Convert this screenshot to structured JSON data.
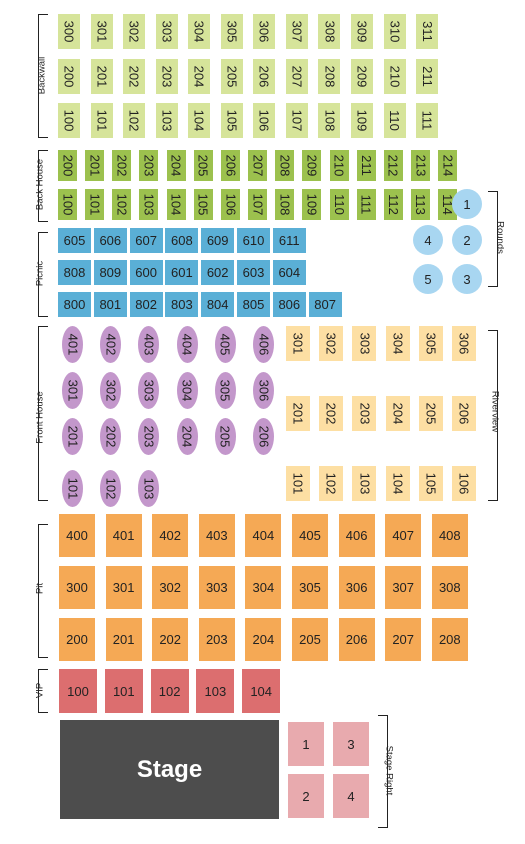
{
  "colors": {
    "backwall": "#d6e49a",
    "back_house": "#9cc14e",
    "picnic": "#5aafd6",
    "rounds": "#a8d6f1",
    "front_house": "#c397cb",
    "riverview": "#fddfa3",
    "pit": "#f5a955",
    "vip": "#dc6e6f",
    "stage_right": "#e8aaae",
    "stage": "#4d4d4d"
  },
  "labels": {
    "backwall": "Backwall",
    "back_house": "Back House",
    "picnic": "Picnic",
    "rounds": "Rounds",
    "front_house": "Front House",
    "riverview": "Riverview",
    "pit": "Pit",
    "vip": "VIP",
    "stage_right": "Stage Right",
    "stage": "Stage"
  },
  "backwall_rows": [
    [
      "300",
      "301",
      "302",
      "303",
      "304",
      "305",
      "306",
      "307",
      "308",
      "309",
      "310",
      "311"
    ],
    [
      "200",
      "201",
      "202",
      "203",
      "204",
      "205",
      "206",
      "207",
      "208",
      "209",
      "210",
      "211"
    ],
    [
      "100",
      "101",
      "102",
      "103",
      "104",
      "105",
      "106",
      "107",
      "108",
      "109",
      "110",
      "111"
    ]
  ],
  "back_house_rows": [
    [
      "200",
      "201",
      "202",
      "203",
      "204",
      "205",
      "206",
      "207",
      "208",
      "209",
      "210",
      "211",
      "212",
      "213",
      "214"
    ],
    [
      "100",
      "101",
      "102",
      "103",
      "104",
      "105",
      "106",
      "107",
      "108",
      "109",
      "110",
      "111",
      "112",
      "113",
      "114"
    ]
  ],
  "picnic_rows": [
    [
      "605",
      "606",
      "607",
      "608",
      "609",
      "610",
      "611"
    ],
    [
      "808",
      "809",
      "600",
      "601",
      "602",
      "603",
      "604"
    ],
    [
      "800",
      "801",
      "802",
      "803",
      "804",
      "805",
      "806",
      "807"
    ]
  ],
  "rounds": [
    "1",
    "2",
    "3",
    "4",
    "5"
  ],
  "front_house_rows": [
    [
      "401",
      "402",
      "403",
      "404",
      "405",
      "406"
    ],
    [
      "301",
      "302",
      "303",
      "304",
      "305",
      "306"
    ],
    [
      "201",
      "202",
      "203",
      "204",
      "205",
      "206"
    ],
    [
      "101",
      "102",
      "103"
    ]
  ],
  "riverview_rows": [
    [
      "301",
      "302",
      "303",
      "304",
      "305",
      "306"
    ],
    [
      "201",
      "202",
      "203",
      "204",
      "205",
      "206"
    ],
    [
      "101",
      "102",
      "103",
      "104",
      "105",
      "106"
    ]
  ],
  "pit_rows": [
    [
      "400",
      "401",
      "402",
      "403",
      "404",
      "405",
      "406",
      "407",
      "408"
    ],
    [
      "300",
      "301",
      "302",
      "303",
      "304",
      "305",
      "306",
      "307",
      "308"
    ],
    [
      "200",
      "201",
      "202",
      "203",
      "204",
      "205",
      "206",
      "207",
      "208"
    ]
  ],
  "vip": [
    "100",
    "101",
    "102",
    "103",
    "104"
  ],
  "stage_right": [
    "1",
    "3",
    "2",
    "4"
  ]
}
